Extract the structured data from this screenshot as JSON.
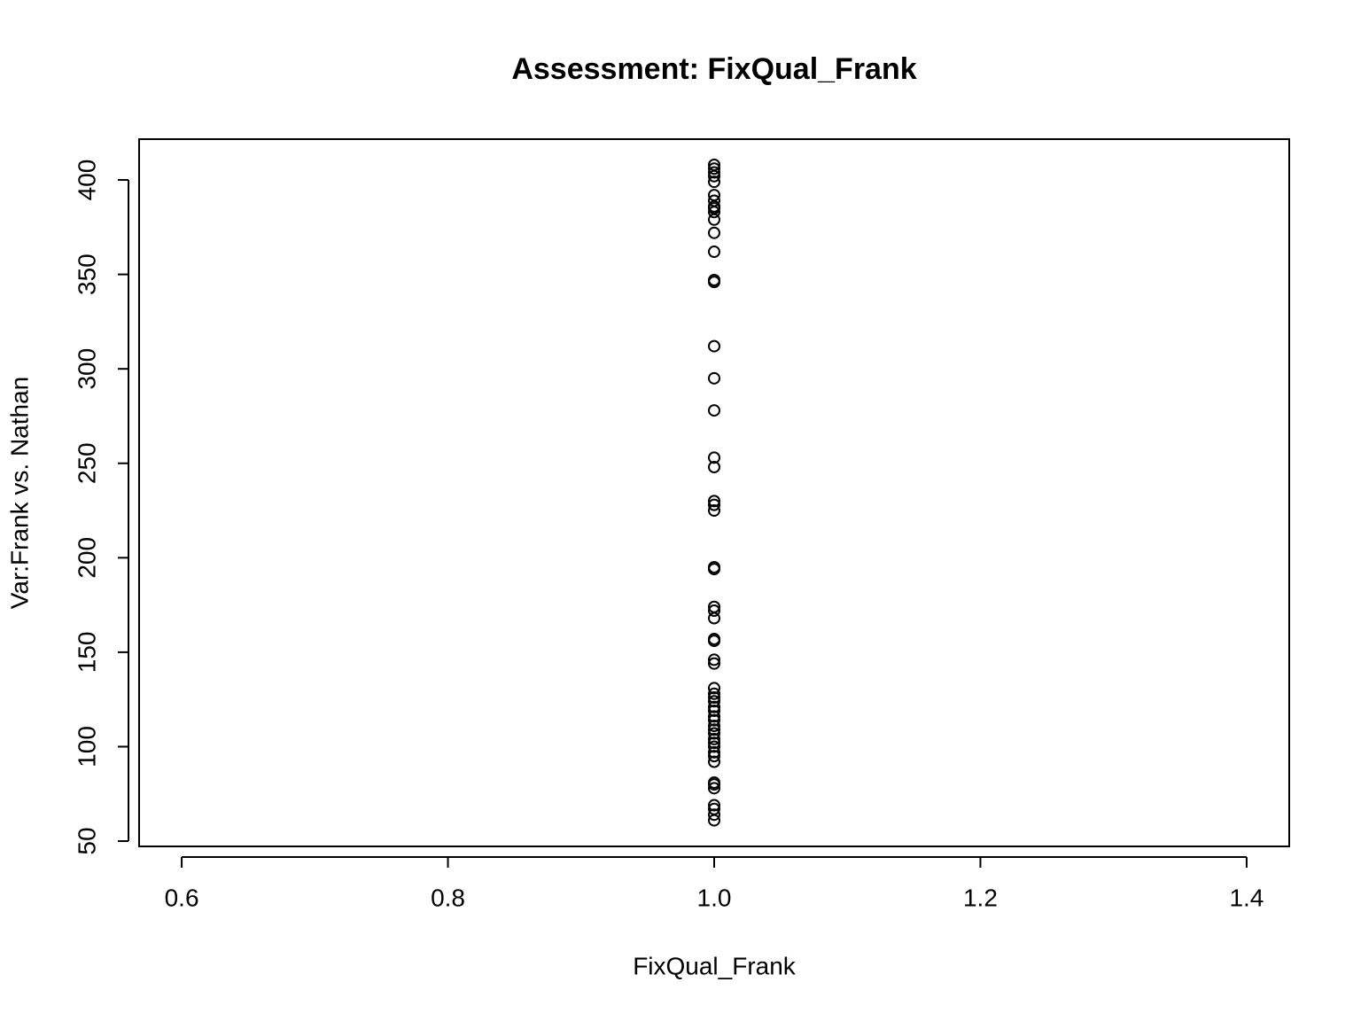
{
  "chart_data": {
    "type": "scatter",
    "title": "Assessment: FixQual_Frank",
    "x_label": "FixQual_Frank",
    "y_label": "Var:Frank vs. Nathan",
    "x": [
      1,
      1,
      1,
      1,
      1,
      1,
      1,
      1,
      1,
      1,
      1,
      1,
      1,
      1,
      1,
      1,
      1,
      1,
      1,
      1,
      1,
      1,
      1,
      1,
      1,
      1,
      1,
      1,
      1,
      1,
      1,
      1,
      1,
      1,
      1,
      1,
      1,
      1,
      1,
      1,
      1,
      1,
      1,
      1,
      1,
      1,
      1,
      1,
      1,
      1,
      1,
      1,
      1,
      1,
      1,
      1
    ],
    "values": [
      408,
      406,
      404,
      402,
      399,
      392,
      389,
      386,
      385,
      383,
      379,
      372,
      362,
      347,
      346,
      312,
      295,
      278,
      253,
      248,
      230,
      228,
      225,
      195,
      194,
      174,
      172,
      168,
      157,
      156,
      146,
      144,
      131,
      128,
      126,
      124,
      121,
      119,
      116,
      114,
      111,
      109,
      107,
      104,
      102,
      100,
      97,
      95,
      92,
      81,
      80,
      78,
      69,
      67,
      64,
      61
    ],
    "color": "#000000",
    "xlim": [
      0.568,
      1.432
    ],
    "xticks": [
      {
        "value": 0.6,
        "label": "0.6"
      },
      {
        "value": 0.8,
        "label": "0.8"
      },
      {
        "value": 1.0,
        "label": "1.0"
      },
      {
        "value": 1.2,
        "label": "1.2"
      },
      {
        "value": 1.4,
        "label": "1.4"
      }
    ],
    "ylim": [
      47.2,
      421.6
    ],
    "yticks": [
      50,
      100,
      150,
      200,
      250,
      300,
      350,
      400
    ]
  }
}
